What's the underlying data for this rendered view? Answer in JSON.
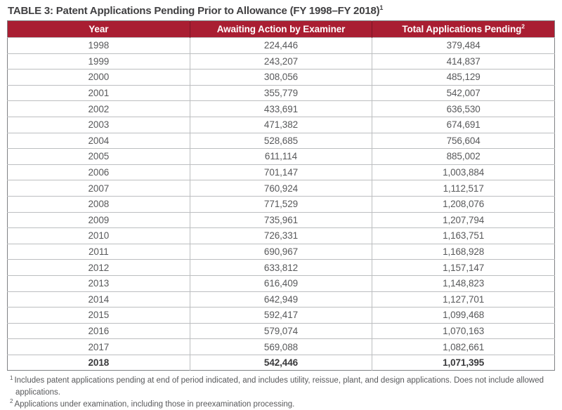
{
  "title": {
    "text": "TABLE 3:  Patent Applications Pending Prior to Allowance (FY 1998–FY 2018)",
    "superscript": "1"
  },
  "colors": {
    "header_bg": "#A91E32",
    "header_text": "#FFFFFF",
    "title_color": "#414042",
    "data_text": "#58595B"
  },
  "table": {
    "columns": [
      {
        "label": "Year",
        "superscript": ""
      },
      {
        "label": "Awaiting Action by Examiner",
        "superscript": ""
      },
      {
        "label": "Total Applications Pending",
        "superscript": "2"
      }
    ],
    "rows": [
      {
        "year": "1998",
        "awaiting": "224,446",
        "total": "379,484",
        "bold": false
      },
      {
        "year": "1999",
        "awaiting": "243,207",
        "total": "414,837",
        "bold": false
      },
      {
        "year": "2000",
        "awaiting": "308,056",
        "total": "485,129",
        "bold": false
      },
      {
        "year": "2001",
        "awaiting": "355,779",
        "total": "542,007",
        "bold": false
      },
      {
        "year": "2002",
        "awaiting": "433,691",
        "total": "636,530",
        "bold": false
      },
      {
        "year": "2003",
        "awaiting": "471,382",
        "total": "674,691",
        "bold": false
      },
      {
        "year": "2004",
        "awaiting": "528,685",
        "total": "756,604",
        "bold": false
      },
      {
        "year": "2005",
        "awaiting": "611,114",
        "total": "885,002",
        "bold": false
      },
      {
        "year": "2006",
        "awaiting": "701,147",
        "total": "1,003,884",
        "bold": false
      },
      {
        "year": "2007",
        "awaiting": "760,924",
        "total": "1,112,517",
        "bold": false
      },
      {
        "year": "2008",
        "awaiting": "771,529",
        "total": "1,208,076",
        "bold": false
      },
      {
        "year": "2009",
        "awaiting": "735,961",
        "total": "1,207,794",
        "bold": false
      },
      {
        "year": "2010",
        "awaiting": "726,331",
        "total": "1,163,751",
        "bold": false
      },
      {
        "year": "2011",
        "awaiting": "690,967",
        "total": "1,168,928",
        "bold": false
      },
      {
        "year": "2012",
        "awaiting": "633,812",
        "total": "1,157,147",
        "bold": false
      },
      {
        "year": "2013",
        "awaiting": "616,409",
        "total": "1,148,823",
        "bold": false
      },
      {
        "year": "2014",
        "awaiting": "642,949",
        "total": "1,127,701",
        "bold": false
      },
      {
        "year": "2015",
        "awaiting": "592,417",
        "total": "1,099,468",
        "bold": false
      },
      {
        "year": "2016",
        "awaiting": "579,074",
        "total": "1,070,163",
        "bold": false
      },
      {
        "year": "2017",
        "awaiting": "569,088",
        "total": "1,082,661",
        "bold": false
      },
      {
        "year": "2018",
        "awaiting": "542,446",
        "total": "1,071,395",
        "bold": true
      }
    ]
  },
  "footnotes": [
    {
      "superscript": "1",
      "text": "Includes patent applications pending at end of period indicated, and includes utility, reissue, plant, and design applications. Does not include allowed applications."
    },
    {
      "superscript": "2",
      "text": "Applications under examination, including those in preexamination processing."
    }
  ]
}
